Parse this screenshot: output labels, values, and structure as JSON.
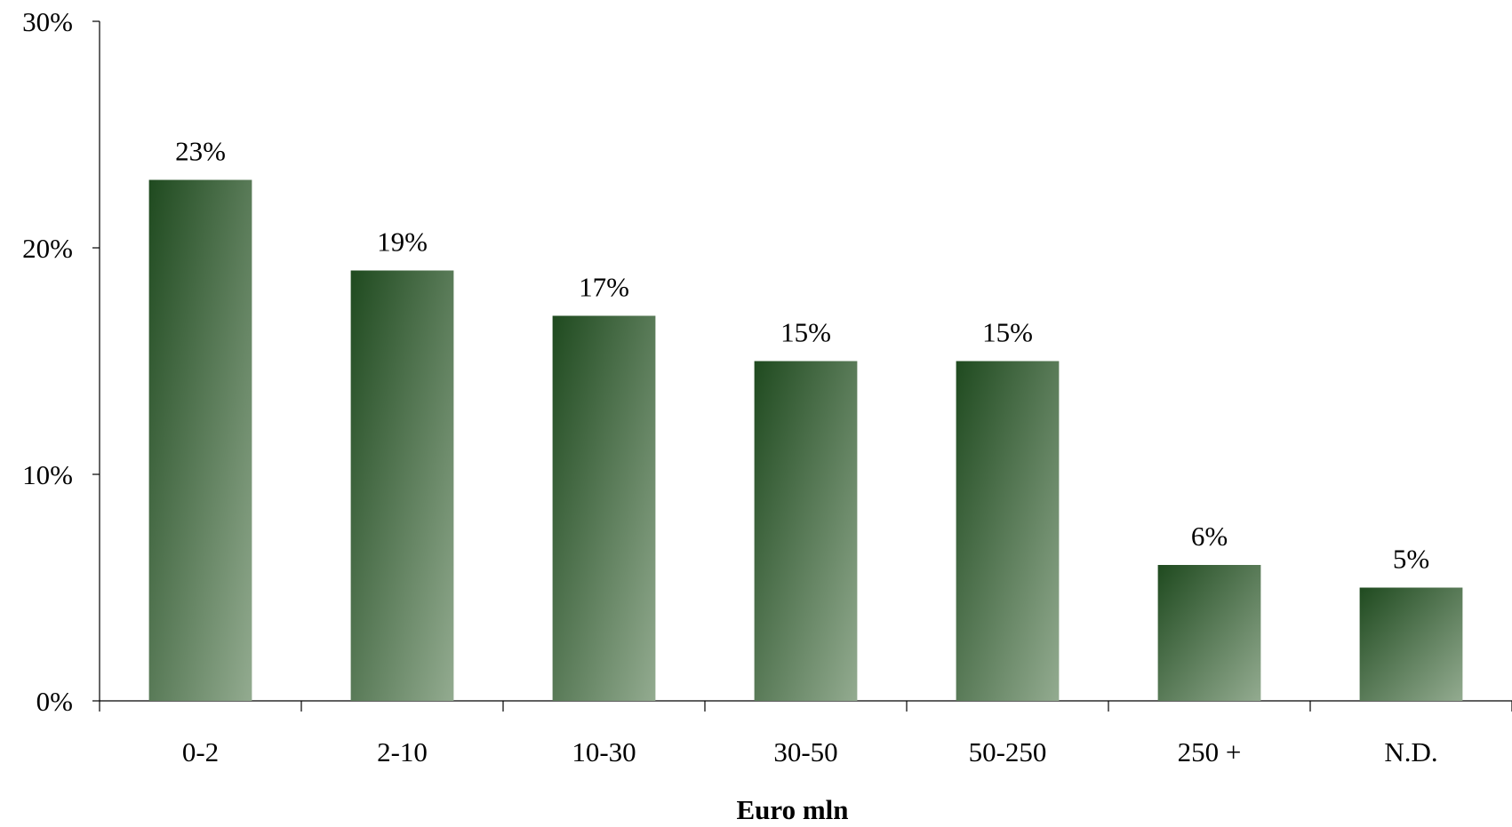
{
  "chart_data": {
    "type": "bar",
    "title": "",
    "xlabel": "Euro mln",
    "ylabel": "",
    "categories": [
      "0-2",
      "2-10",
      "10-30",
      "30-50",
      "50-250",
      "250 +",
      "N.D."
    ],
    "values": [
      23,
      19,
      17,
      15,
      15,
      6,
      5
    ],
    "data_labels": [
      "23%",
      "19%",
      "17%",
      "15%",
      "15%",
      "6%",
      "5%"
    ],
    "ylim": [
      0,
      30
    ],
    "yticks": [
      0,
      10,
      20,
      30
    ],
    "ytick_labels": [
      "0%",
      "10%",
      "20%",
      "30%"
    ],
    "grid": false,
    "legend": "none",
    "colors": {
      "bar_dark": "#1f4a1f",
      "bar_light": "#93ab90",
      "axis": "#000000"
    }
  }
}
